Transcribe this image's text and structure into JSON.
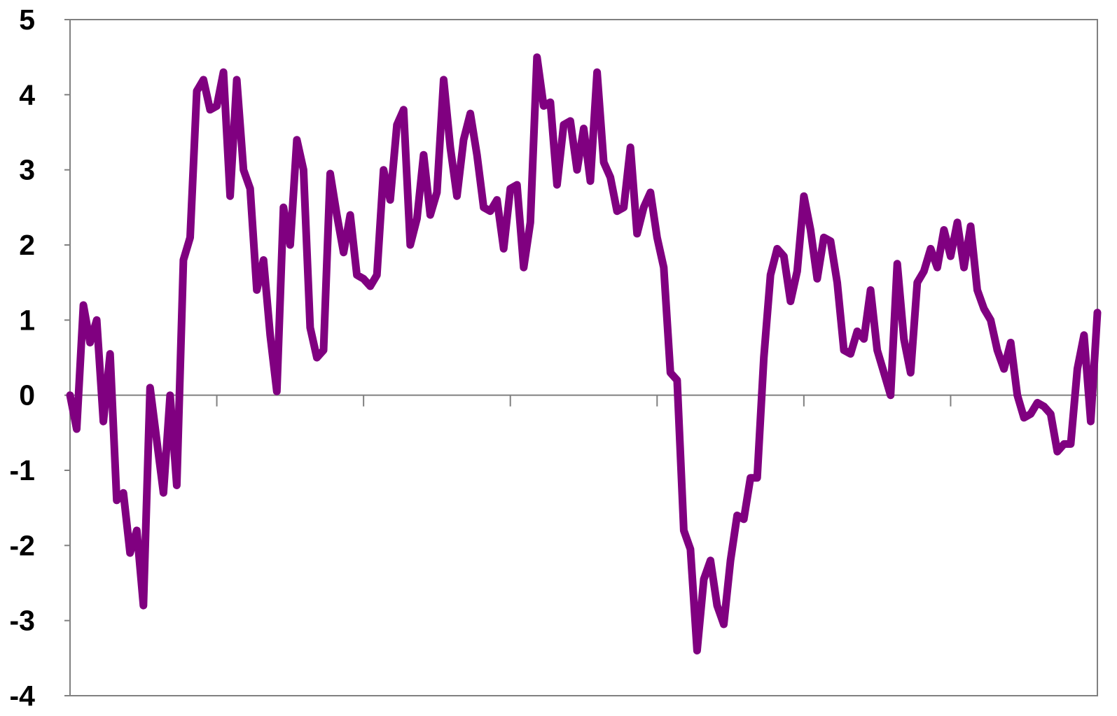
{
  "chart_data": {
    "type": "line",
    "title": "",
    "xlabel": "",
    "ylabel": "",
    "ylim": [
      -4,
      5
    ],
    "yticks": [
      "5",
      "4",
      "3",
      "2",
      "1",
      "0",
      "-1",
      "-2",
      "-3",
      "-4"
    ],
    "xlim": [
      0,
      330
    ],
    "xtick_count": 7,
    "x_tick_labels_shown": false,
    "grid": false,
    "legend": "none",
    "colors": {
      "series": "#800080",
      "axis": "#808080",
      "background": "#ffffff"
    },
    "series": [
      {
        "values": [
          0,
          -0.45,
          1.2,
          0.7,
          1.0,
          -0.35,
          0.55,
          -1.4,
          -1.3,
          -2.1,
          -1.8,
          -2.8,
          0.1,
          -0.6,
          -1.3,
          0,
          -1.2,
          1.8,
          2.1,
          4.05,
          4.2,
          3.8,
          3.85,
          4.3,
          2.65,
          4.2,
          3.0,
          2.75,
          1.4,
          1.8,
          0.8,
          0.05,
          2.5,
          2.0,
          3.4,
          3.0,
          0.9,
          0.5,
          0.6,
          2.95,
          2.4,
          1.9,
          2.4,
          1.6,
          1.55,
          1.45,
          1.6,
          3.0,
          2.6,
          3.6,
          3.8,
          2.0,
          2.35,
          3.2,
          2.4,
          2.7,
          4.2,
          3.3,
          2.65,
          3.4,
          3.75,
          3.2,
          2.5,
          2.45,
          2.6,
          1.95,
          2.75,
          2.8,
          1.7,
          2.3,
          4.5,
          3.85,
          3.9,
          2.8,
          3.6,
          3.65,
          3.0,
          3.55,
          2.85,
          4.3,
          3.1,
          2.9,
          2.45,
          2.5,
          3.3,
          2.15,
          2.5,
          2.7,
          2.1,
          1.7,
          0.3,
          0.2,
          -1.8,
          -2.05,
          -3.4,
          -2.45,
          -2.2,
          -2.8,
          -3.05,
          -2.2,
          -1.6,
          -1.65,
          -1.1,
          -1.1,
          0.5,
          1.6,
          1.95,
          1.85,
          1.25,
          1.65,
          2.65,
          2.2,
          1.55,
          2.1,
          2.05,
          1.5,
          0.6,
          0.55,
          0.85,
          0.75,
          1.4,
          0.6,
          0.3,
          0,
          1.75,
          0.75,
          0.3,
          1.5,
          1.65,
          1.95,
          1.7,
          2.2,
          1.85,
          2.3,
          1.7,
          2.25,
          1.4,
          1.15,
          1.0,
          0.6,
          0.35,
          0.7,
          0,
          -0.3,
          -0.25,
          -0.1,
          -0.15,
          -0.25,
          -0.75,
          -0.65,
          -0.65,
          0.35,
          0.8,
          -0.35,
          1.1
        ]
      }
    ]
  }
}
